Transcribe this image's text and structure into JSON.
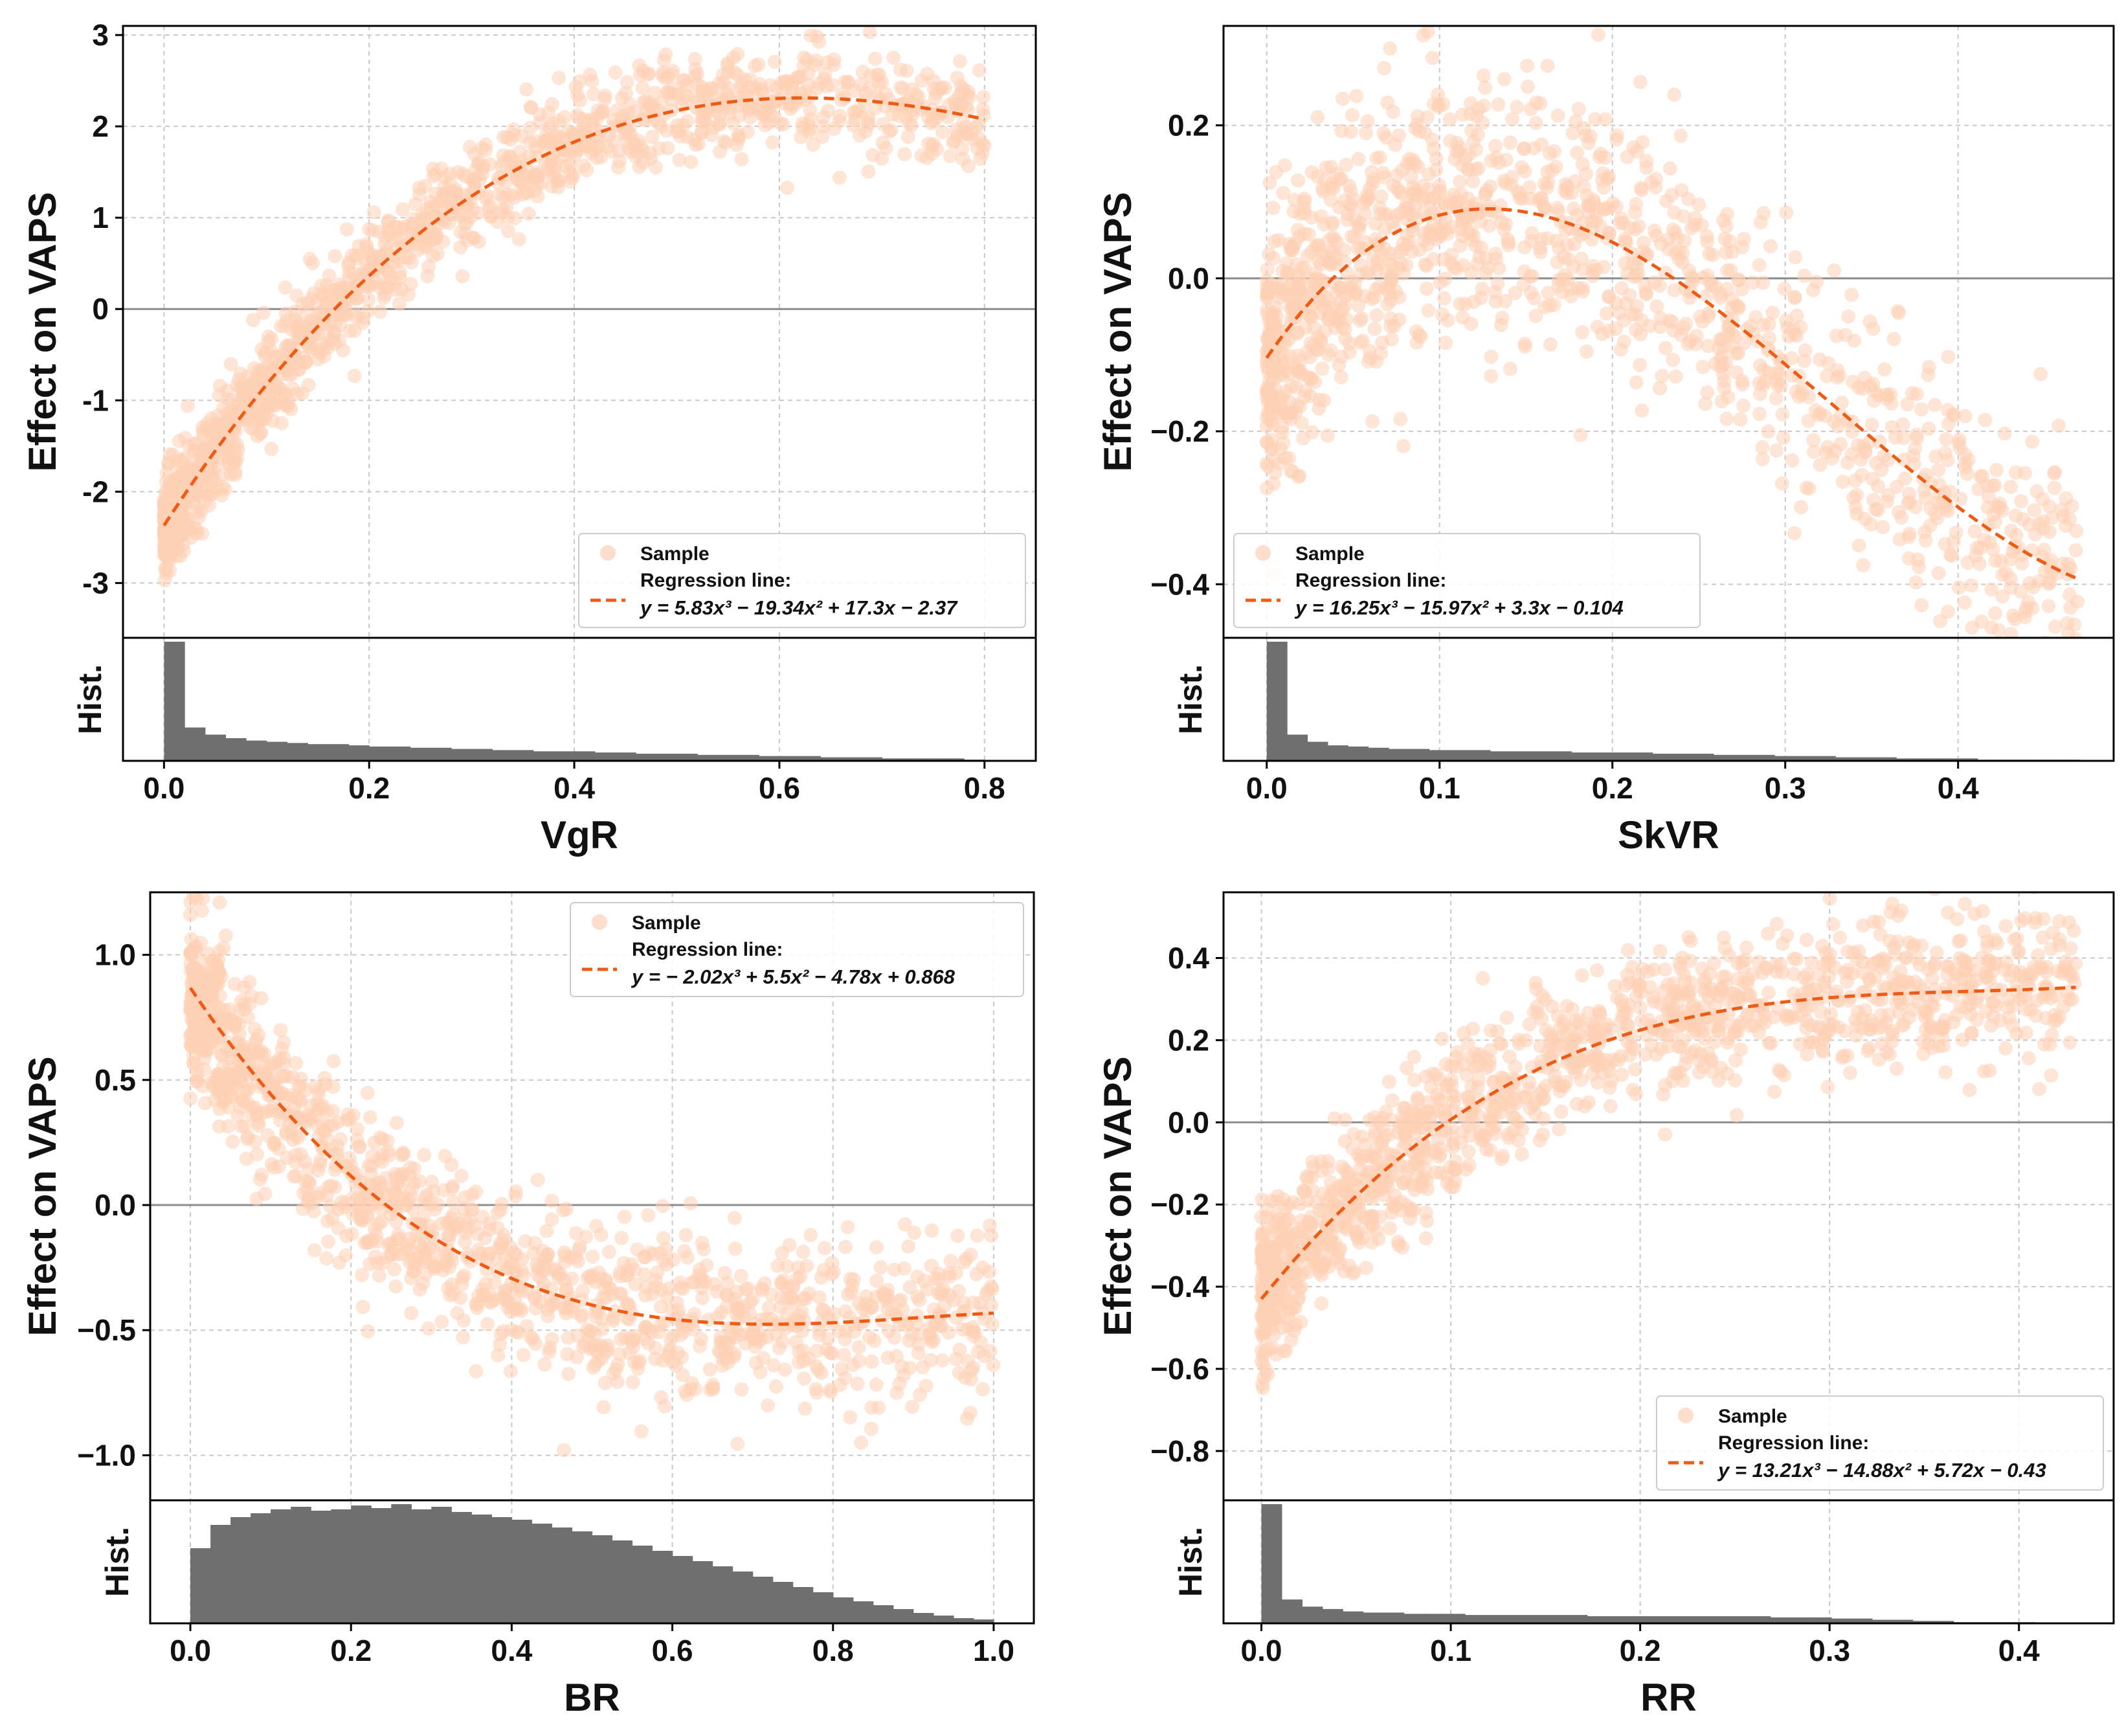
{
  "figure": {
    "colors": {
      "sample": "#fdd0b5",
      "regression": "#f05a12",
      "hist": "#6f6f6f",
      "grid": "#c8c8c8",
      "zero_line": "#8c8c8c",
      "frame": "#000000"
    }
  },
  "chart_data": [
    {
      "type": "scatter",
      "feature": "VgR",
      "xlabel": "VgR",
      "ylabel": "Effect on VAPS",
      "hist_label": "Hist.",
      "xlim": [
        -0.04,
        0.85
      ],
      "ylim": [
        -3.6,
        3.1
      ],
      "xticks": [
        0.0,
        0.2,
        0.4,
        0.6,
        0.8
      ],
      "xtick_labels": [
        "0.0",
        "0.2",
        "0.4",
        "0.6",
        "0.8"
      ],
      "yticks": [
        -3,
        -2,
        -1,
        0,
        1,
        2,
        3
      ],
      "ytick_labels": [
        "-3",
        "-2",
        "-1",
        "0",
        "1",
        "2",
        "3"
      ],
      "x_range": [
        0.0,
        0.8
      ],
      "coefficients": [
        5.83,
        -19.34,
        17.3,
        -2.37
      ],
      "noise": 0.28,
      "legend": {
        "position": "lower-right",
        "sample_label": "Sample",
        "line_label": "Regression line:",
        "equation": "y = 5.83x³ − 19.34x² + 17.3x − 2.37"
      },
      "histogram": {
        "range": [
          0.0,
          0.8
        ],
        "counts": [
          100,
          28,
          22,
          19,
          17,
          16,
          15,
          14,
          14,
          13,
          12,
          12,
          11,
          11,
          10,
          10,
          9,
          9,
          8,
          8,
          8,
          7,
          7,
          6,
          6,
          6,
          5,
          5,
          5,
          4,
          4,
          4,
          3,
          3,
          3,
          2,
          2,
          2,
          2,
          1
        ]
      }
    },
    {
      "type": "scatter",
      "feature": "SkVR",
      "xlabel": "SkVR",
      "ylabel": "Effect on VAPS",
      "hist_label": "Hist.",
      "xlim": [
        -0.025,
        0.49
      ],
      "ylim": [
        -0.47,
        0.33
      ],
      "xticks": [
        0.0,
        0.1,
        0.2,
        0.3,
        0.4
      ],
      "xtick_labels": [
        "0.0",
        "0.1",
        "0.2",
        "0.3",
        "0.4"
      ],
      "yticks": [
        -0.4,
        -0.2,
        0.0,
        0.2
      ],
      "ytick_labels": [
        "−0.4",
        "−0.2",
        "0.0",
        "0.2"
      ],
      "x_range": [
        0.0,
        0.47
      ],
      "coefficients": [
        16.25,
        -15.97,
        3.3,
        -0.104
      ],
      "noise": 0.09,
      "legend": {
        "position": "lower-left",
        "sample_label": "Sample",
        "line_label": "Regression line:",
        "equation": "y = 16.25x³ − 15.97x² + 3.3x − 0.104"
      },
      "histogram": {
        "range": [
          0.0,
          0.47
        ],
        "counts": [
          100,
          22,
          16,
          13,
          12,
          11,
          10,
          10,
          9,
          9,
          9,
          8,
          8,
          8,
          8,
          7,
          7,
          7,
          7,
          6,
          6,
          6,
          5,
          5,
          5,
          4,
          4,
          4,
          3,
          3,
          3,
          2,
          2,
          2,
          2,
          1,
          1,
          1,
          1,
          1
        ]
      }
    },
    {
      "type": "scatter",
      "feature": "BR",
      "xlabel": "BR",
      "ylabel": "Effect on VAPS",
      "hist_label": "Hist.",
      "xlim": [
        -0.05,
        1.05
      ],
      "ylim": [
        -1.18,
        1.25
      ],
      "xticks": [
        0.0,
        0.2,
        0.4,
        0.6,
        0.8,
        1.0
      ],
      "xtick_labels": [
        "0.0",
        "0.2",
        "0.4",
        "0.6",
        "0.8",
        "1.0"
      ],
      "yticks": [
        -1.0,
        -0.5,
        0.0,
        0.5,
        1.0
      ],
      "ytick_labels": [
        "−1.0",
        "−0.5",
        "0.0",
        "0.5",
        "1.0"
      ],
      "x_range": [
        0.0,
        1.0
      ],
      "coefficients": [
        -2.02,
        5.5,
        -4.78,
        0.868
      ],
      "noise": 0.17,
      "legend": {
        "position": "upper-right",
        "sample_label": "Sample",
        "line_label": "Regression line:",
        "equation": "y = − 2.02x³ + 5.5x² − 4.78x + 0.868"
      },
      "histogram": {
        "range": [
          0.0,
          1.0
        ],
        "counts": [
          58,
          76,
          82,
          85,
          88,
          90,
          87,
          88,
          91,
          89,
          92,
          88,
          90,
          86,
          84,
          82,
          80,
          77,
          74,
          71,
          68,
          64,
          60,
          56,
          52,
          48,
          44,
          40,
          36,
          32,
          28,
          24,
          20,
          17,
          14,
          11,
          8,
          6,
          4,
          3
        ]
      }
    },
    {
      "type": "scatter",
      "feature": "RR",
      "xlabel": "RR",
      "ylabel": "Effect on VAPS",
      "hist_label": "Hist.",
      "xlim": [
        -0.02,
        0.45
      ],
      "ylim": [
        -0.92,
        0.56
      ],
      "xticks": [
        0.0,
        0.1,
        0.2,
        0.3,
        0.4
      ],
      "xtick_labels": [
        "0.0",
        "0.1",
        "0.2",
        "0.3",
        "0.4"
      ],
      "yticks": [
        -0.8,
        -0.6,
        -0.4,
        -0.2,
        0.0,
        0.2,
        0.4
      ],
      "ytick_labels": [
        "−0.8",
        "−0.6",
        "−0.4",
        "−0.2",
        "0.0",
        "0.2",
        "0.4"
      ],
      "x_range": [
        0.0,
        0.43
      ],
      "coefficients": [
        13.21,
        -14.88,
        5.72,
        -0.43
      ],
      "noise": 0.09,
      "legend": {
        "position": "lower-right",
        "sample_label": "Sample",
        "line_label": "Regression line:",
        "equation": "y = 13.21x³ − 14.88x² + 5.72x − 0.43"
      },
      "histogram": {
        "range": [
          0.0,
          0.43
        ],
        "counts": [
          100,
          20,
          14,
          12,
          10,
          9,
          9,
          8,
          8,
          8,
          7,
          7,
          7,
          7,
          7,
          7,
          6,
          6,
          6,
          6,
          6,
          6,
          6,
          6,
          6,
          5,
          5,
          5,
          4,
          4,
          3,
          3,
          2,
          2,
          1,
          1,
          1,
          1,
          0,
          0
        ]
      }
    }
  ]
}
